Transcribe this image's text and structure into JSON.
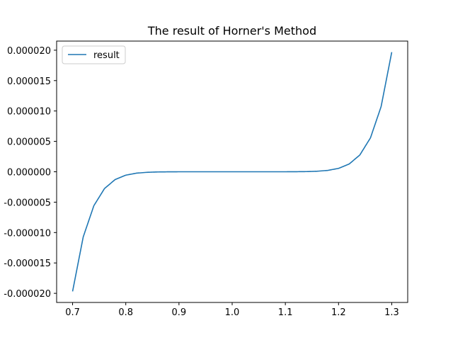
{
  "chart_data": {
    "type": "line",
    "title": "The result of Horner's Method",
    "xlabel": "",
    "ylabel": "",
    "xlim": [
      0.67,
      1.33
    ],
    "ylim": [
      -2.15e-05,
      2.15e-05
    ],
    "x_ticks": [
      0.7,
      0.8,
      0.9,
      1.0,
      1.1,
      1.2,
      1.3
    ],
    "x_tick_labels": [
      "0.7",
      "0.8",
      "0.9",
      "1.0",
      "1.1",
      "1.2",
      "1.3"
    ],
    "y_ticks": [
      -2e-05,
      -1.5e-05,
      -1e-05,
      -5e-06,
      0,
      5e-06,
      1e-05,
      1.5e-05,
      2e-05
    ],
    "y_tick_labels": [
      "-0.000020",
      "-0.000015",
      "-0.000010",
      "-0.000005",
      "0.000000",
      "0.000005",
      "0.000010",
      "0.000015",
      "0.000020"
    ],
    "grid": false,
    "legend_position": "top-left",
    "series": [
      {
        "name": "result",
        "color": "#1f77b4",
        "x": [
          0.7,
          0.72,
          0.74,
          0.76,
          0.78,
          0.8,
          0.82,
          0.84,
          0.86,
          0.88,
          0.9,
          0.95,
          1.0,
          1.05,
          1.1,
          1.12,
          1.14,
          1.16,
          1.18,
          1.2,
          1.22,
          1.24,
          1.26,
          1.28,
          1.3
        ],
        "y": [
          -1.968e-05,
          -1.072e-05,
          -5.58e-06,
          -2.76e-06,
          -1.28e-06,
          -5.6e-07,
          -2.3e-07,
          -9e-08,
          -3e-08,
          -1e-08,
          0.0,
          0.0,
          0.0,
          0.0,
          0.0,
          1e-08,
          3e-08,
          9e-08,
          2.3e-07,
          5.6e-07,
          1.28e-06,
          2.76e-06,
          5.58e-06,
          1.072e-05,
          1.968e-05
        ]
      }
    ]
  }
}
